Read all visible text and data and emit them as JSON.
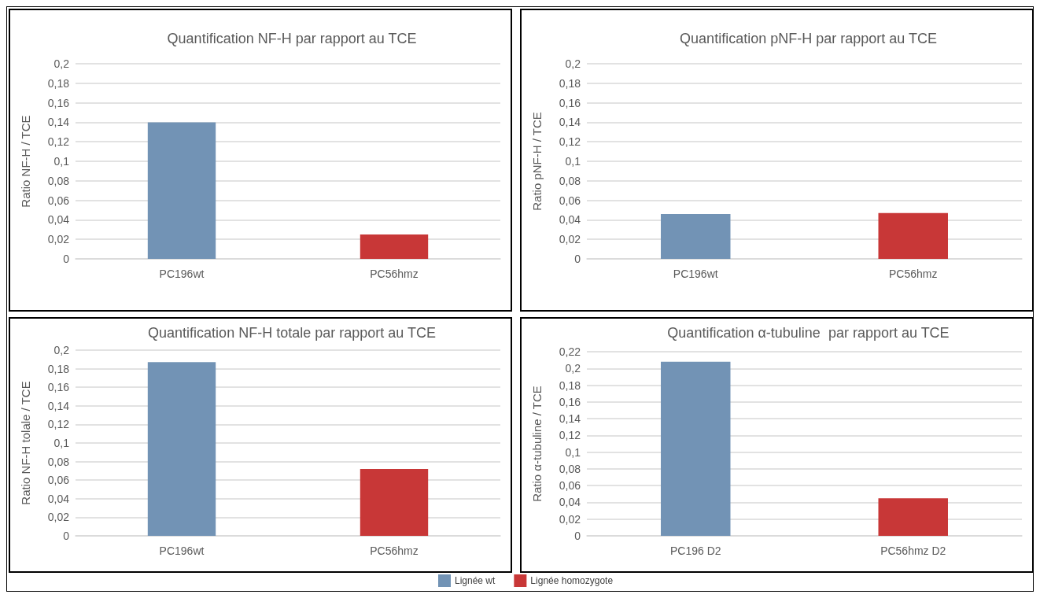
{
  "chart_data": [
    {
      "type": "bar",
      "title": "Quantification NF-H par rapport au TCE",
      "ylabel": "Ratio NF-H / TCE",
      "categories": [
        "PC196wt",
        "PC56hmz"
      ],
      "stacked": true,
      "series": [
        {
          "color": "#7293b5",
          "values": [
            0.14,
            null
          ]
        },
        {
          "color": "#c83737",
          "values": [
            null,
            0.025
          ]
        }
      ],
      "ylim": [
        0,
        0.2
      ],
      "yticks": [
        {
          "value": 0,
          "label": "0"
        },
        {
          "value": 0.02,
          "label": "0,02"
        },
        {
          "value": 0.04,
          "label": "0,04"
        },
        {
          "value": 0.06,
          "label": "0,06"
        },
        {
          "value": 0.08,
          "label": "0,08"
        },
        {
          "value": 0.1,
          "label": "0,1"
        },
        {
          "value": 0.12,
          "label": "0,12"
        },
        {
          "value": 0.14,
          "label": "0,14"
        },
        {
          "value": 0.16,
          "label": "0,16"
        },
        {
          "value": 0.18,
          "label": "0,18"
        },
        {
          "value": 0.2,
          "label": "0,2"
        }
      ],
      "grid": "y"
    },
    {
      "type": "bar",
      "title": "Quantification pNF-H par rapport au TCE",
      "ylabel": "Ratio pNF-H / TCE",
      "categories": [
        "PC196wt",
        "PC56hmz"
      ],
      "stacked": true,
      "series": [
        {
          "color": "#7293b5",
          "values": [
            0.046,
            null
          ]
        },
        {
          "color": "#c83737",
          "values": [
            null,
            0.047
          ]
        }
      ],
      "ylim": [
        0,
        0.2
      ],
      "yticks": [
        {
          "value": 0,
          "label": "0"
        },
        {
          "value": 0.02,
          "label": "0,02"
        },
        {
          "value": 0.04,
          "label": "0,04"
        },
        {
          "value": 0.06,
          "label": "0,06"
        },
        {
          "value": 0.08,
          "label": "0,08"
        },
        {
          "value": 0.1,
          "label": "0,1"
        },
        {
          "value": 0.12,
          "label": "0,12"
        },
        {
          "value": 0.14,
          "label": "0,14"
        },
        {
          "value": 0.16,
          "label": "0,16"
        },
        {
          "value": 0.18,
          "label": "0,18"
        },
        {
          "value": 0.2,
          "label": "0,2"
        }
      ],
      "grid": "y"
    },
    {
      "type": "bar",
      "title": "Quantification NF-H totale par rapport au TCE",
      "ylabel": "Ratio NF-H tolale / TCE",
      "categories": [
        "PC196wt",
        "PC56hmz"
      ],
      "stacked": true,
      "series": [
        {
          "name": "Lignée wt",
          "color": "#7293b5",
          "values": [
            0.187,
            null
          ]
        },
        {
          "name": "Lignée homozygote",
          "color": "#c83737",
          "values": [
            null,
            0.072
          ]
        }
      ],
      "ylim": [
        0,
        0.2
      ],
      "yticks": [
        {
          "value": 0,
          "label": "0"
        },
        {
          "value": 0.02,
          "label": "0,02"
        },
        {
          "value": 0.04,
          "label": "0,04"
        },
        {
          "value": 0.06,
          "label": "0,06"
        },
        {
          "value": 0.08,
          "label": "0,08"
        },
        {
          "value": 0.1,
          "label": "0,1"
        },
        {
          "value": 0.12,
          "label": "0,12"
        },
        {
          "value": 0.14,
          "label": "0,14"
        },
        {
          "value": 0.16,
          "label": "0,16"
        },
        {
          "value": 0.18,
          "label": "0,18"
        },
        {
          "value": 0.2,
          "label": "0,2"
        }
      ],
      "grid": "y",
      "legend": "bottom"
    },
    {
      "type": "bar",
      "title": "Quantification α-tubuline  par rapport au TCE",
      "ylabel": "Ratio α-tubuline / TCE",
      "categories": [
        "PC196 D2",
        "PC56hmz D2"
      ],
      "stacked": true,
      "series": [
        {
          "color": "#7293b5",
          "values": [
            0.208,
            null
          ]
        },
        {
          "color": "#c83737",
          "values": [
            null,
            0.045
          ]
        }
      ],
      "ylim": [
        0,
        0.22
      ],
      "yticks": [
        {
          "value": 0,
          "label": "0"
        },
        {
          "value": 0.02,
          "label": "0,02"
        },
        {
          "value": 0.04,
          "label": "0,04"
        },
        {
          "value": 0.06,
          "label": "0,06"
        },
        {
          "value": 0.08,
          "label": "0,08"
        },
        {
          "value": 0.1,
          "label": "0,1"
        },
        {
          "value": 0.12,
          "label": "0,12"
        },
        {
          "value": 0.14,
          "label": "0,14"
        },
        {
          "value": 0.16,
          "label": "0,16"
        },
        {
          "value": 0.18,
          "label": "0,18"
        },
        {
          "value": 0.2,
          "label": "0,2"
        },
        {
          "value": 0.22,
          "label": "0,22"
        }
      ],
      "grid": "y"
    }
  ]
}
